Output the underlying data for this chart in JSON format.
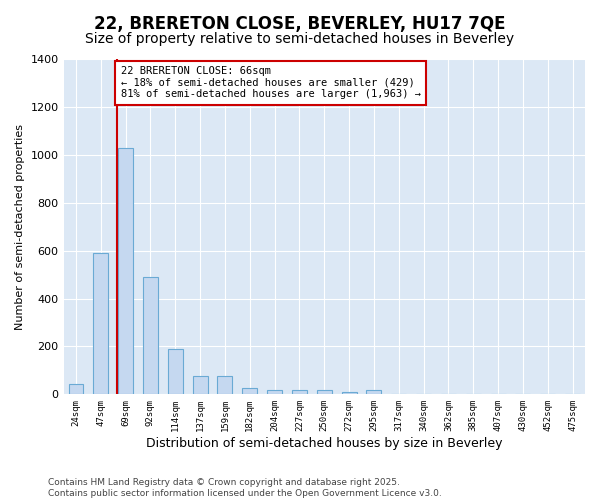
{
  "title": "22, BRERETON CLOSE, BEVERLEY, HU17 7QE",
  "subtitle": "Size of property relative to semi-detached houses in Beverley",
  "xlabel": "Distribution of semi-detached houses by size in Beverley",
  "ylabel": "Number of semi-detached properties",
  "bin_labels": [
    "24sqm",
    "47sqm",
    "69sqm",
    "92sqm",
    "114sqm",
    "137sqm",
    "159sqm",
    "182sqm",
    "204sqm",
    "227sqm",
    "250sqm",
    "272sqm",
    "295sqm",
    "317sqm",
    "340sqm",
    "362sqm",
    "385sqm",
    "407sqm",
    "430sqm",
    "452sqm",
    "475sqm"
  ],
  "bar_values": [
    45,
    590,
    1030,
    490,
    190,
    75,
    75,
    25,
    20,
    20,
    20,
    8,
    20,
    0,
    0,
    0,
    0,
    0,
    0,
    0,
    0
  ],
  "bar_color": "#c5d8f0",
  "bar_edgecolor": "#6aaad4",
  "property_line_bin": 2,
  "annotation_text": "22 BRERETON CLOSE: 66sqm\n← 18% of semi-detached houses are smaller (429)\n81% of semi-detached houses are larger (1,963) →",
  "redline_color": "#cc0000",
  "annotation_box_edgecolor": "#cc0000",
  "ylim": [
    0,
    1400
  ],
  "fig_background_color": "#ffffff",
  "plot_bg_color": "#dce8f5",
  "grid_color": "#ffffff",
  "title_fontsize": 12,
  "subtitle_fontsize": 10,
  "ylabel_fontsize": 8,
  "xlabel_fontsize": 9,
  "footer_text": "Contains HM Land Registry data © Crown copyright and database right 2025.\nContains public sector information licensed under the Open Government Licence v3.0."
}
